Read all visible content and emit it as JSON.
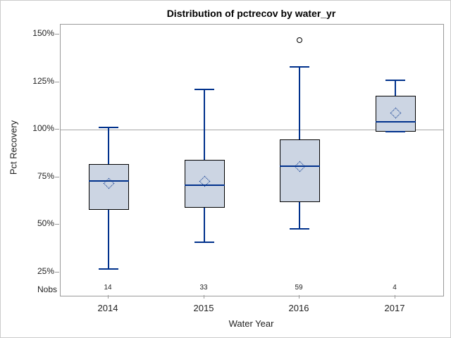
{
  "chart_data": {
    "type": "boxplot",
    "title": "Distribution of pctrecov by water_yr",
    "xlabel": "Water Year",
    "ylabel": "Pct Recovery",
    "categories": [
      "2014",
      "2015",
      "2016",
      "2017"
    ],
    "nobs_label": "Nobs",
    "nobs": [
      14,
      33,
      59,
      4
    ],
    "y_ticks": [
      150,
      125,
      100,
      75,
      50,
      25
    ],
    "y_tick_labels": [
      "150%",
      "125%",
      "100%",
      "75%",
      "50%",
      "25%"
    ],
    "ylim_display": [
      25,
      150
    ],
    "reference_line": 100,
    "grid": false,
    "legend": "none",
    "boxes": [
      {
        "category": "2014",
        "whisker_low": 27,
        "q1": 58,
        "median": 73,
        "mean": 72,
        "q3": 82,
        "whisker_high": 101,
        "outliers": []
      },
      {
        "category": "2015",
        "whisker_low": 41,
        "q1": 59,
        "median": 71,
        "mean": 73,
        "q3": 84,
        "whisker_high": 121,
        "outliers": []
      },
      {
        "category": "2016",
        "whisker_low": 48,
        "q1": 62,
        "median": 81,
        "mean": 81,
        "q3": 95,
        "whisker_high": 133,
        "outliers": [
          147
        ]
      },
      {
        "category": "2017",
        "whisker_low": 99,
        "q1": 99,
        "median": 104,
        "mean": 109,
        "q3": 118,
        "whisker_high": 126,
        "outliers": []
      }
    ],
    "colors": {
      "box_fill": "#ccd5e3",
      "box_border": "#000000",
      "whisker": "#00318c",
      "median": "#00318c",
      "mean_marker": "#00318c",
      "outlier": "#000000",
      "frame": "#999999",
      "reference_line": "#a6a6a6",
      "tick_text": "#222222"
    }
  }
}
